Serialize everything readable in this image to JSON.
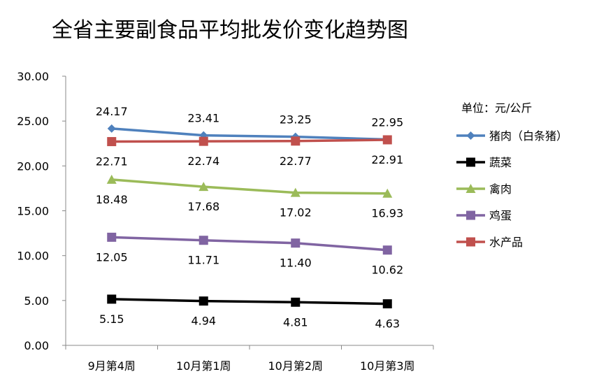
{
  "chart_data": {
    "type": "line",
    "title": "全省主要副食品平均批发价变化趋势图",
    "unit_label": "单位：元/公斤",
    "categories": [
      "9月第4周",
      "10月第1周",
      "10月第2周",
      "10月第3周"
    ],
    "ylim": [
      0,
      30
    ],
    "y_ticks": [
      "0.00",
      "5.00",
      "10.00",
      "15.00",
      "20.00",
      "25.00",
      "30.00"
    ],
    "grid": false,
    "legend_position": "right",
    "series": [
      {
        "name": "猪肉（白条猪）",
        "color": "#4f81bd",
        "marker": "diamond",
        "label_pos": "above",
        "values": [
          24.17,
          23.41,
          23.25,
          22.95
        ],
        "labels": [
          "24.17",
          "23.41",
          "23.25",
          "22.95"
        ]
      },
      {
        "name": "蔬菜",
        "color": "#000000",
        "marker": "square",
        "label_pos": "below",
        "values": [
          5.15,
          4.94,
          4.81,
          4.63
        ],
        "labels": [
          "5.15",
          "4.94",
          "4.81",
          "4.63"
        ]
      },
      {
        "name": "禽肉",
        "color": "#9bbb59",
        "marker": "triangle",
        "label_pos": "below",
        "values": [
          18.48,
          17.68,
          17.02,
          16.93
        ],
        "labels": [
          "18.48",
          "17.68",
          "17.02",
          "16.93"
        ]
      },
      {
        "name": "鸡蛋",
        "color": "#8064a2",
        "marker": "square",
        "label_pos": "below",
        "values": [
          12.05,
          11.71,
          11.4,
          10.62
        ],
        "labels": [
          "12.05",
          "11.71",
          "11.40",
          "10.62"
        ]
      },
      {
        "name": "水产品",
        "color": "#c0504d",
        "marker": "square",
        "label_pos": "below",
        "values": [
          22.71,
          22.74,
          22.77,
          22.91
        ],
        "labels": [
          "22.71",
          "22.74",
          "22.77",
          "22.91"
        ]
      }
    ]
  }
}
